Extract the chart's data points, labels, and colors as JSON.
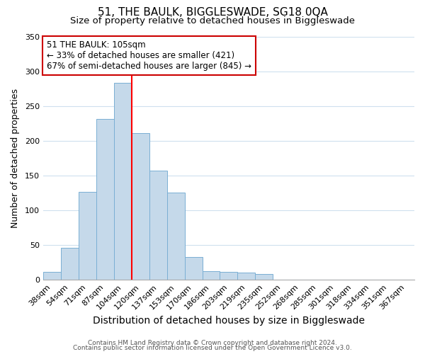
{
  "title": "51, THE BAULK, BIGGLESWADE, SG18 0QA",
  "subtitle": "Size of property relative to detached houses in Biggleswade",
  "xlabel": "Distribution of detached houses by size in Biggleswade",
  "ylabel": "Number of detached properties",
  "bar_labels": [
    "38sqm",
    "54sqm",
    "71sqm",
    "87sqm",
    "104sqm",
    "120sqm",
    "137sqm",
    "153sqm",
    "170sqm",
    "186sqm",
    "203sqm",
    "219sqm",
    "235sqm",
    "252sqm",
    "268sqm",
    "285sqm",
    "301sqm",
    "318sqm",
    "334sqm",
    "351sqm",
    "367sqm"
  ],
  "bar_values": [
    12,
    46,
    127,
    231,
    283,
    211,
    157,
    126,
    33,
    13,
    12,
    10,
    8,
    0,
    0,
    0,
    0,
    0,
    0,
    0,
    0
  ],
  "bar_color": "#c5d9ea",
  "bar_edge_color": "#7aafd4",
  "vline_color": "red",
  "vline_bar_index": 4,
  "ylim": [
    0,
    350
  ],
  "yticks": [
    0,
    50,
    100,
    150,
    200,
    250,
    300,
    350
  ],
  "annotation_title": "51 THE BAULK: 105sqm",
  "annotation_line1": "← 33% of detached houses are smaller (421)",
  "annotation_line2": "67% of semi-detached houses are larger (845) →",
  "annotation_box_color": "#ffffff",
  "annotation_box_edge": "#cc0000",
  "footer1": "Contains HM Land Registry data © Crown copyright and database right 2024.",
  "footer2": "Contains public sector information licensed under the Open Government Licence v3.0.",
  "bg_color": "#ffffff",
  "grid_color": "#cfe0ee",
  "title_fontsize": 11,
  "subtitle_fontsize": 9.5,
  "xlabel_fontsize": 10,
  "ylabel_fontsize": 9,
  "tick_fontsize": 8,
  "ann_fontsize": 8.5,
  "footer_fontsize": 6.5
}
